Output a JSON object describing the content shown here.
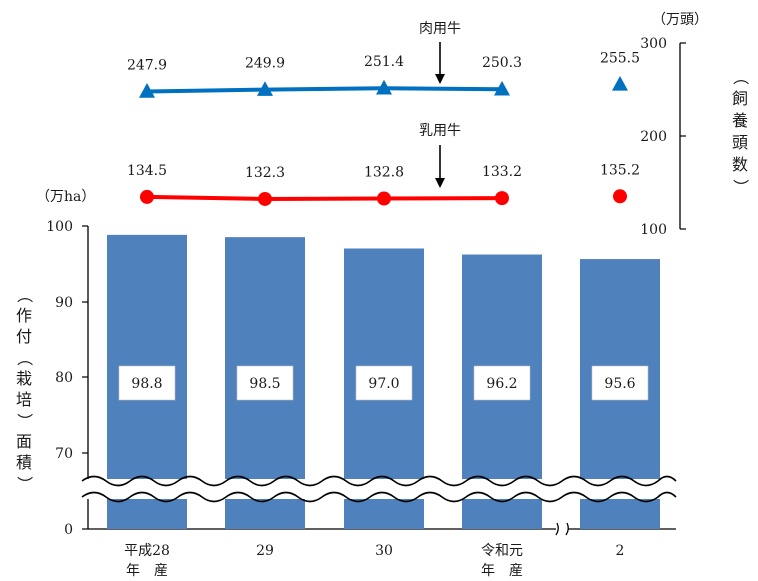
{
  "chart_data": {
    "type": "bar",
    "categories": [
      "平成28\n年　産",
      "29",
      "30",
      "令和元\n年　産",
      "2"
    ],
    "area": {
      "unit_label": "（万ha）",
      "ylabel": "作付（栽培）面積",
      "values": [
        98.8,
        98.5,
        97.0,
        96.2,
        95.6
      ],
      "value_labels": [
        "98.8",
        "98.5",
        "97.0",
        "96.2",
        "95.6"
      ],
      "yticks": [
        "100",
        "90",
        "80",
        "70",
        "0"
      ],
      "ylim": [
        65,
        100
      ],
      "axis_break": true,
      "color": "#4f81bd"
    },
    "series": [
      {
        "name": "肉用牛",
        "values": [
          247.9,
          249.9,
          251.4,
          250.3,
          255.5
        ],
        "value_labels": [
          "247.9",
          "249.9",
          "251.4",
          "250.3",
          "255.5"
        ],
        "color": "#0070c0",
        "marker": "triangle"
      },
      {
        "name": "乳用牛",
        "values": [
          134.5,
          132.3,
          132.8,
          133.2,
          135.2
        ],
        "value_labels": [
          "134.5",
          "132.3",
          "132.8",
          "133.2",
          "135.2"
        ],
        "color": "#ff0000",
        "marker": "circle"
      }
    ],
    "right_axis": {
      "unit_label": "（万頭）",
      "ylabel": "飼養頭数",
      "yticks": [
        "300",
        "200",
        "100"
      ]
    },
    "line_break_before_last": true
  }
}
